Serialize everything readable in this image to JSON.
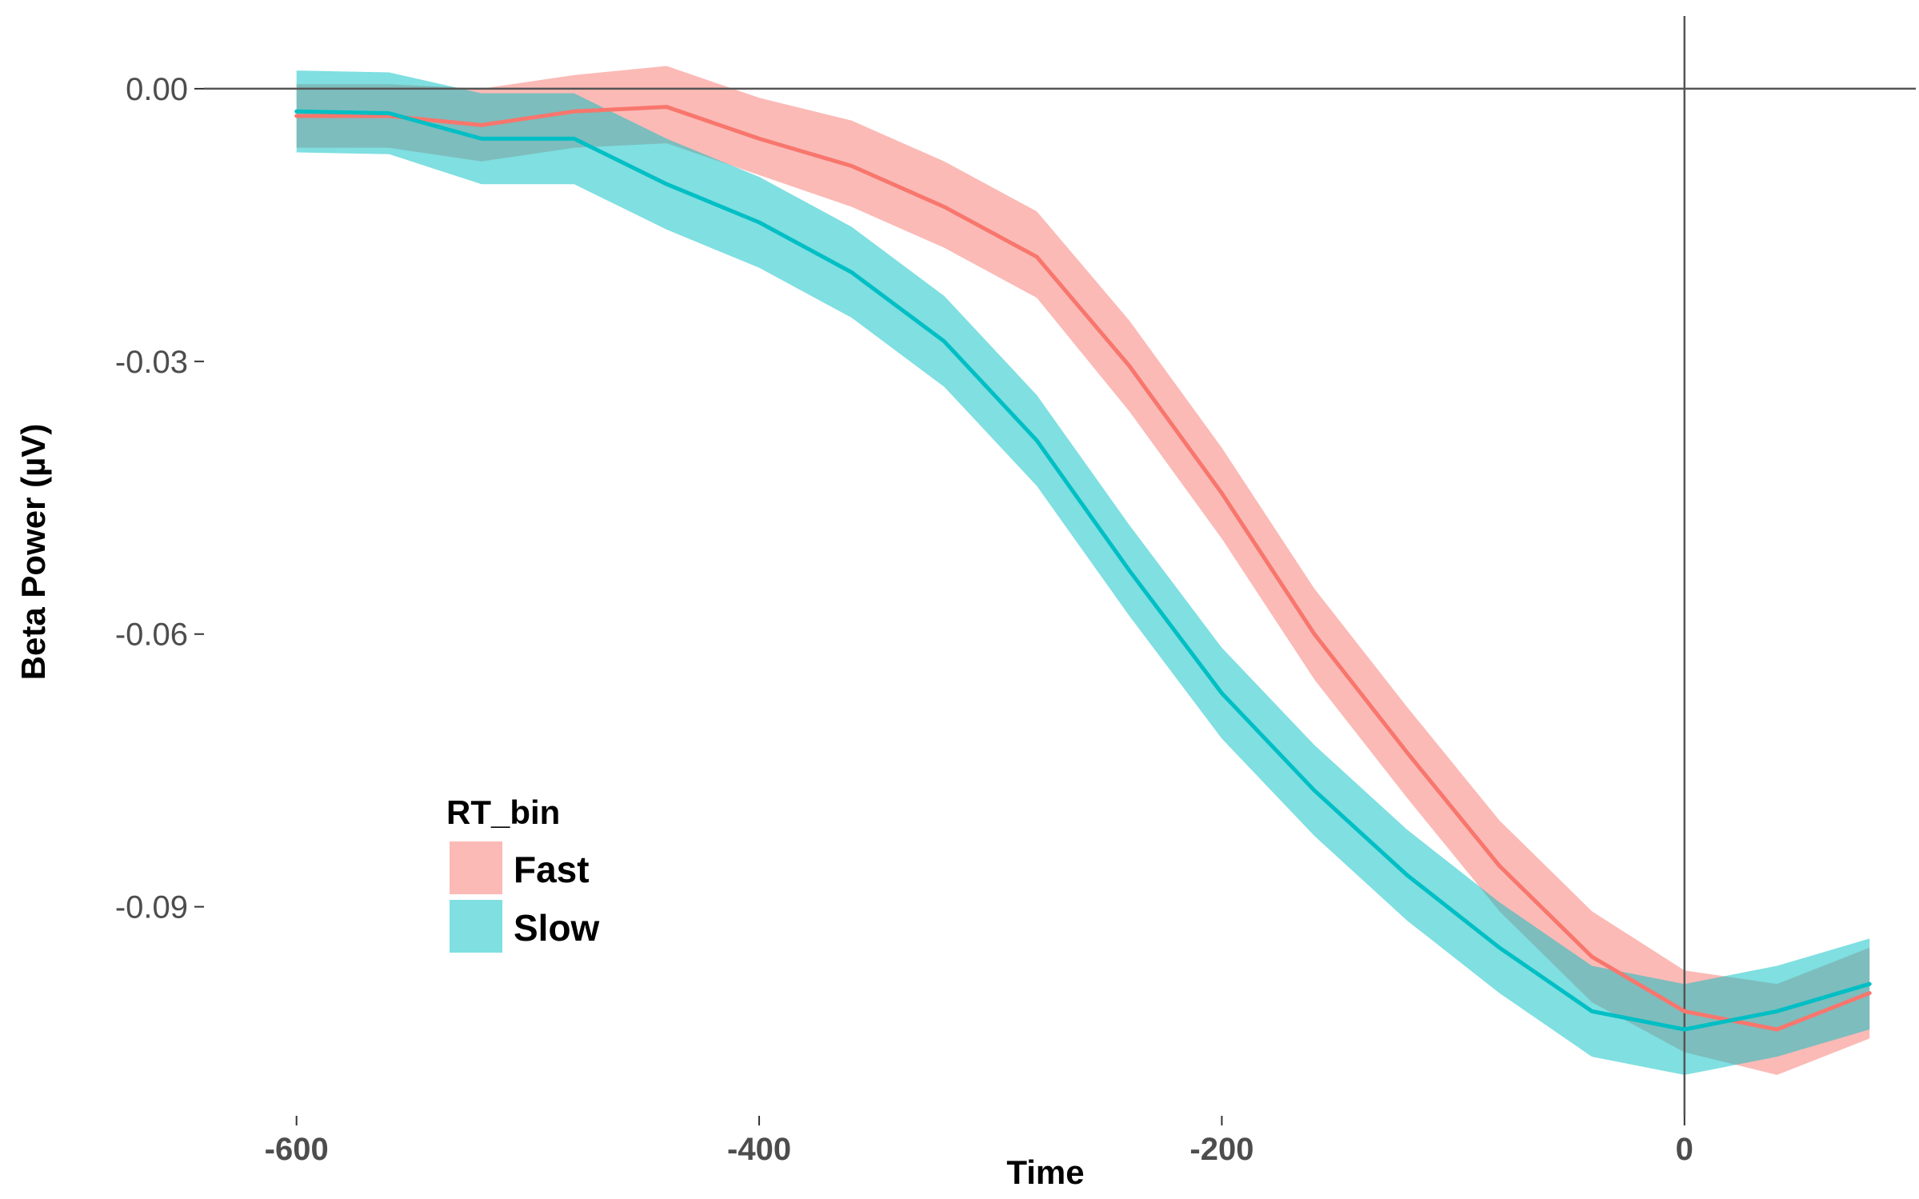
{
  "chart_data": {
    "type": "line",
    "title": "",
    "xlabel": "Time",
    "ylabel": "Beta Power (µV)",
    "xlim": [
      -640,
      100
    ],
    "ylim": [
      -0.113,
      0.008
    ],
    "x_ticks": [
      -600,
      -400,
      -200,
      0
    ],
    "x_tick_labels": [
      "-600",
      "-400",
      "-200",
      "0"
    ],
    "y_ticks": [
      0.0,
      -0.03,
      -0.06,
      -0.09
    ],
    "y_tick_labels": [
      "0.00",
      "-0.03",
      "-0.06",
      "-0.09"
    ],
    "reference_lines": {
      "hline_y": 0,
      "vline_x": 0
    },
    "grid": false,
    "legend": {
      "title": "RT_bin",
      "placement": "bottom-left"
    },
    "x": [
      -600,
      -560,
      -520,
      -480,
      -440,
      -400,
      -360,
      -320,
      -280,
      -240,
      -200,
      -160,
      -120,
      -80,
      -40,
      0,
      40,
      80
    ],
    "series": [
      {
        "name": "Fast",
        "color": "#F8766D",
        "ribbon_color": "#F8766D",
        "values": [
          -0.003,
          -0.003,
          -0.004,
          -0.0025,
          -0.002,
          -0.0055,
          -0.0085,
          -0.013,
          -0.0185,
          -0.0305,
          -0.0445,
          -0.06,
          -0.073,
          -0.0855,
          -0.0955,
          -0.1015,
          -0.1035,
          -0.0995
        ],
        "lower": [
          -0.0065,
          -0.0065,
          -0.008,
          -0.0065,
          -0.006,
          -0.0095,
          -0.013,
          -0.0175,
          -0.023,
          -0.0355,
          -0.0495,
          -0.065,
          -0.078,
          -0.0905,
          -0.1005,
          -0.106,
          -0.1085,
          -0.1045
        ],
        "upper": [
          0.0005,
          0.0005,
          0.0,
          0.0015,
          0.0025,
          -0.001,
          -0.0035,
          -0.008,
          -0.0135,
          -0.0255,
          -0.0395,
          -0.055,
          -0.068,
          -0.0805,
          -0.0905,
          -0.097,
          -0.0985,
          -0.0945
        ]
      },
      {
        "name": "Slow",
        "color": "#00BFC4",
        "ribbon_color": "#00BFC4",
        "values": [
          -0.0025,
          -0.0027,
          -0.0055,
          -0.0055,
          -0.0105,
          -0.0147,
          -0.0202,
          -0.0278,
          -0.0387,
          -0.053,
          -0.0665,
          -0.0772,
          -0.0865,
          -0.0945,
          -0.1015,
          -0.1035,
          -0.1015,
          -0.0985
        ],
        "lower": [
          -0.007,
          -0.0072,
          -0.0105,
          -0.0105,
          -0.0155,
          -0.0197,
          -0.0252,
          -0.0328,
          -0.0437,
          -0.058,
          -0.0715,
          -0.0822,
          -0.0915,
          -0.0995,
          -0.1065,
          -0.1085,
          -0.1065,
          -0.1035
        ],
        "upper": [
          0.002,
          0.0018,
          -0.0005,
          -0.0005,
          -0.0055,
          -0.0097,
          -0.0152,
          -0.0228,
          -0.0337,
          -0.048,
          -0.0615,
          -0.0722,
          -0.0815,
          -0.0895,
          -0.0965,
          -0.0985,
          -0.0965,
          -0.0935
        ]
      }
    ]
  }
}
